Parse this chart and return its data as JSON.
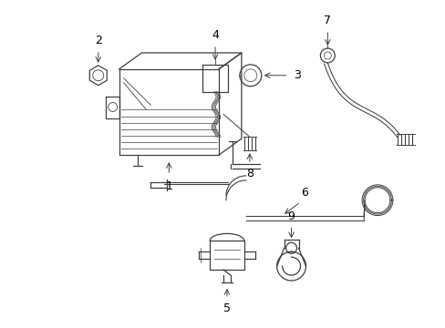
{
  "background_color": "#ffffff",
  "line_color": "#404040",
  "label_color": "#000000",
  "figsize": [
    4.89,
    3.6
  ],
  "dpi": 100
}
